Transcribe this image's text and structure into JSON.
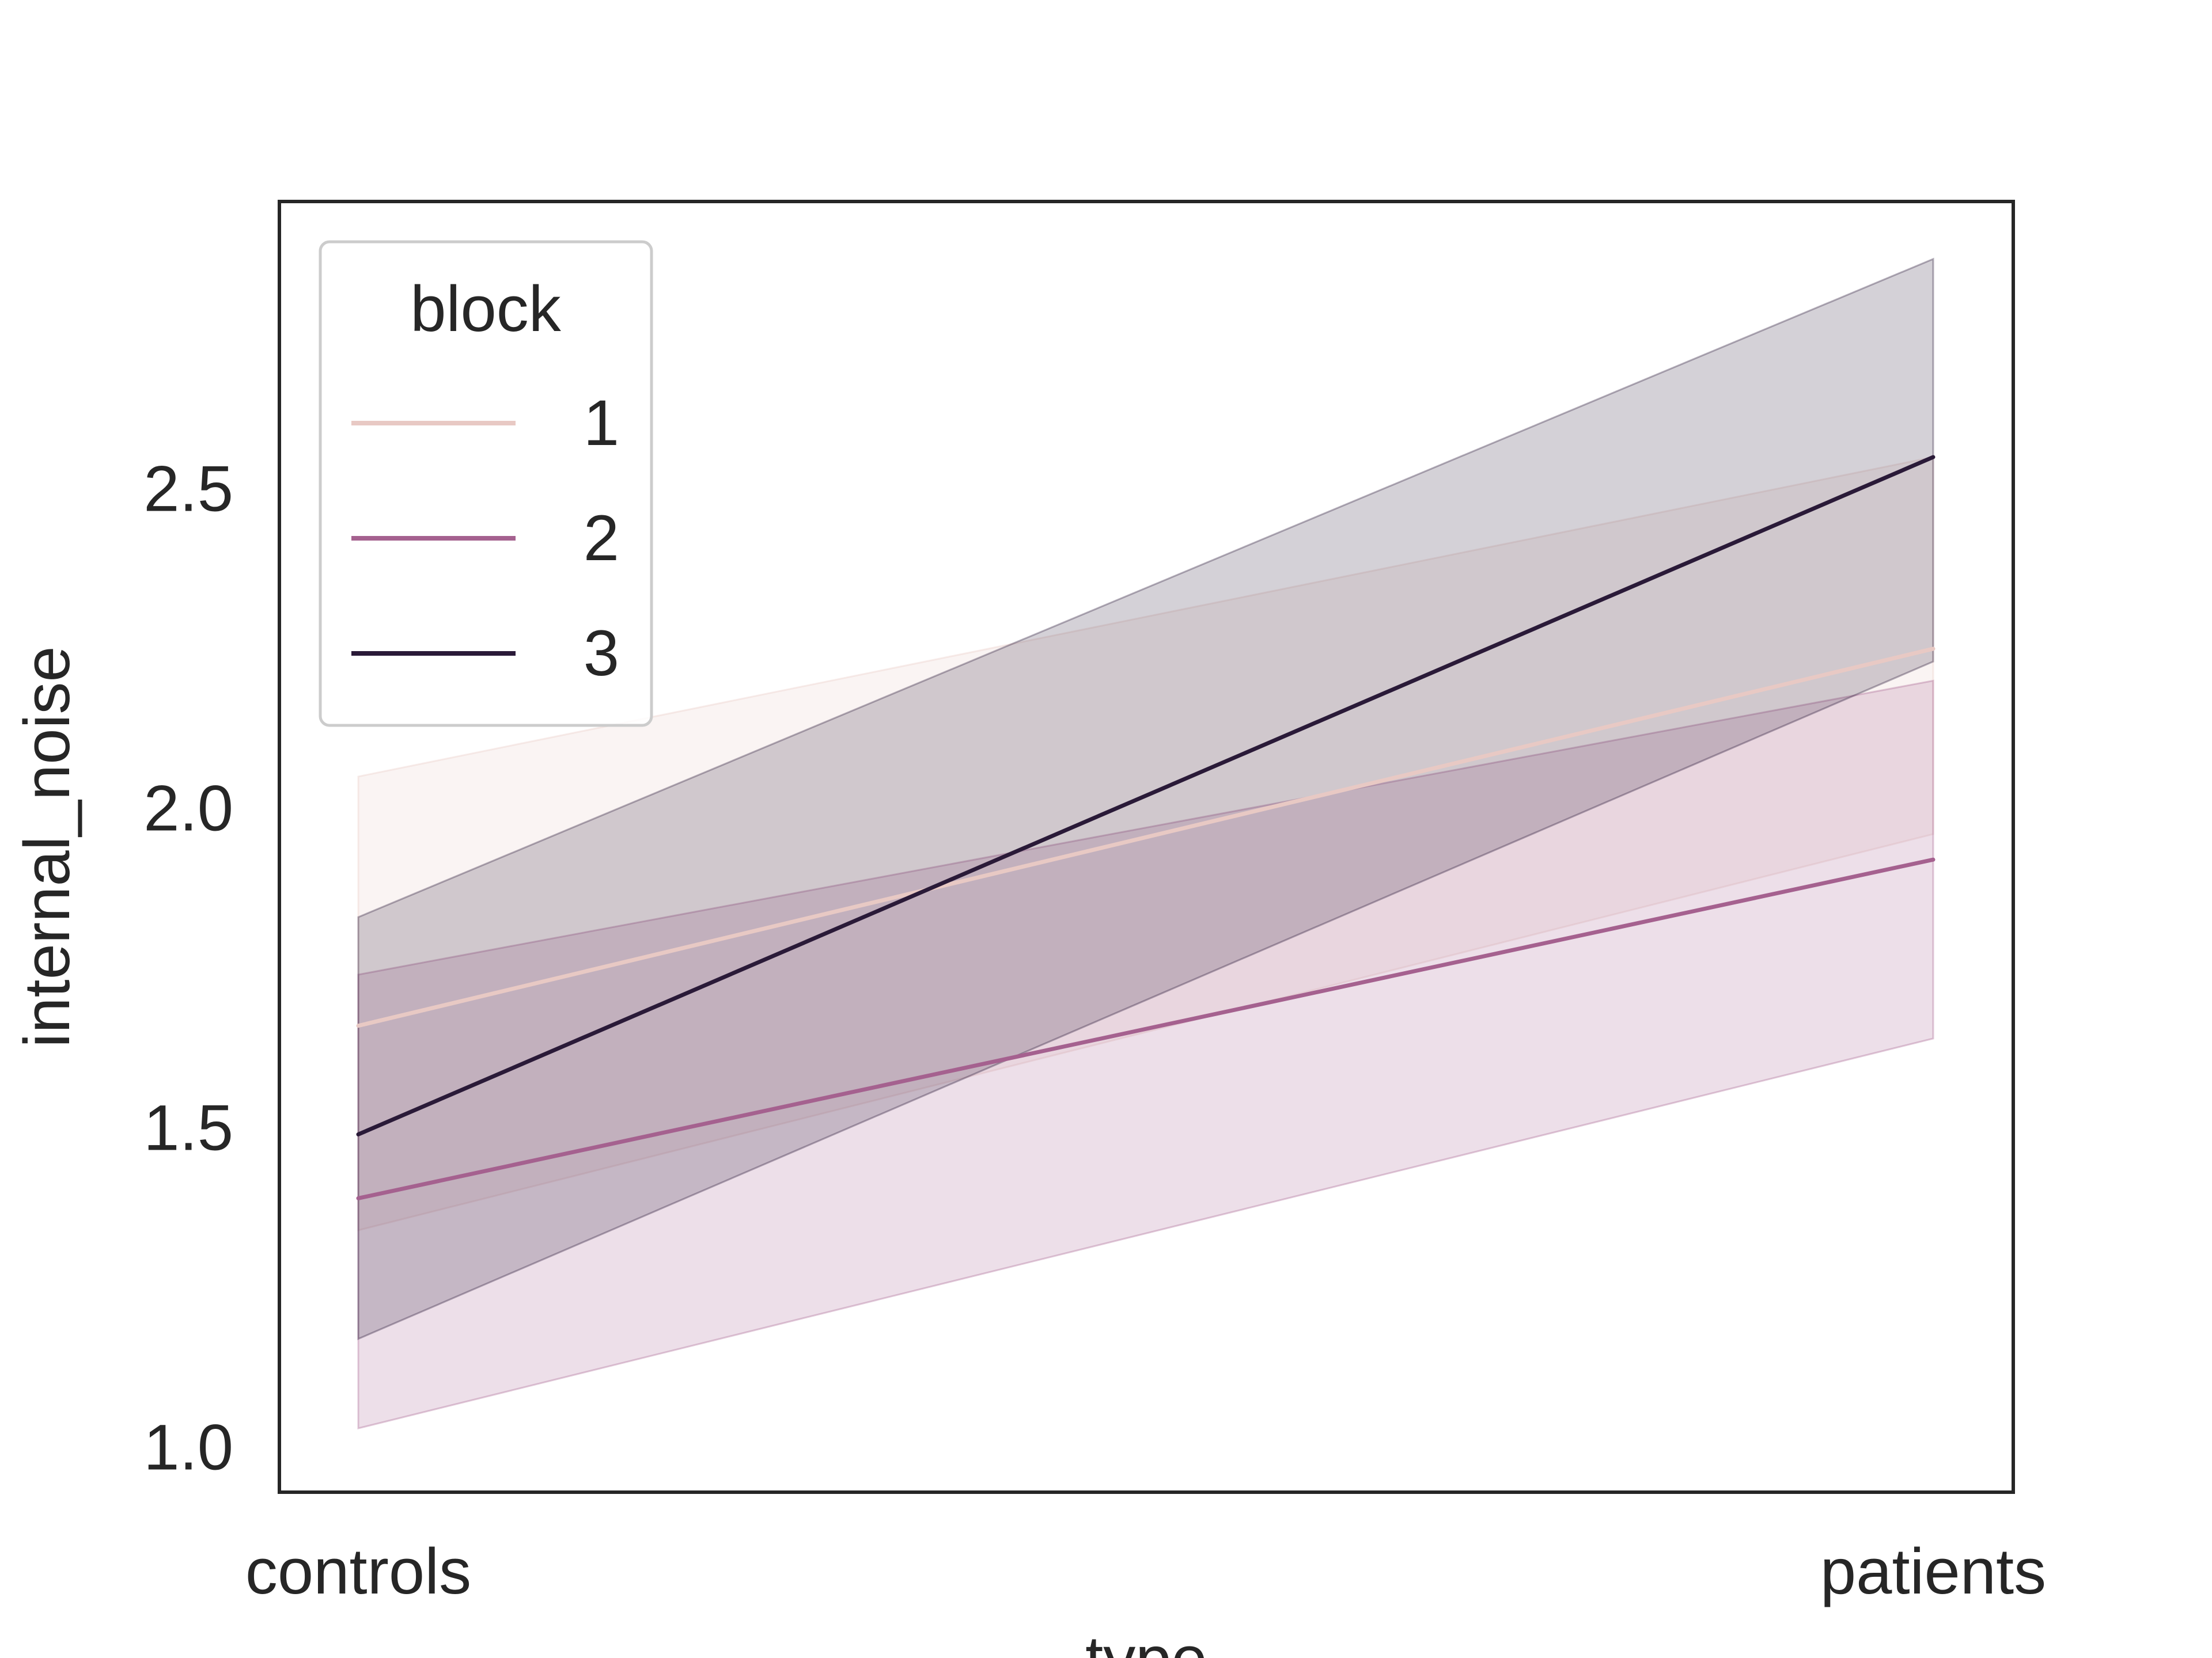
{
  "chart_data": {
    "type": "line",
    "title": "",
    "xlabel": "type",
    "ylabel": "internal_noise",
    "categories": [
      "controls",
      "patients"
    ],
    "ylim": [
      0.93,
      2.95
    ],
    "yticks": [
      1.0,
      1.5,
      2.0,
      2.5
    ],
    "ytick_labels": [
      "1.0",
      "1.5",
      "2.0",
      "2.5"
    ],
    "grid": false,
    "legend": {
      "title": "block",
      "placement": "top-left"
    },
    "series": [
      {
        "name": "1",
        "color": "#e8c9c4",
        "values": [
          1.66,
          2.25
        ],
        "ci_low": [
          1.34,
          1.96
        ],
        "ci_high": [
          2.05,
          2.55
        ]
      },
      {
        "name": "2",
        "color": "#a5618f",
        "values": [
          1.39,
          1.92
        ],
        "ci_low": [
          1.03,
          1.64
        ],
        "ci_high": [
          1.74,
          2.2
        ]
      },
      {
        "name": "3",
        "color": "#2a1a38",
        "values": [
          1.49,
          2.55
        ],
        "ci_low": [
          1.17,
          2.23
        ],
        "ci_high": [
          1.83,
          2.86
        ]
      }
    ]
  }
}
